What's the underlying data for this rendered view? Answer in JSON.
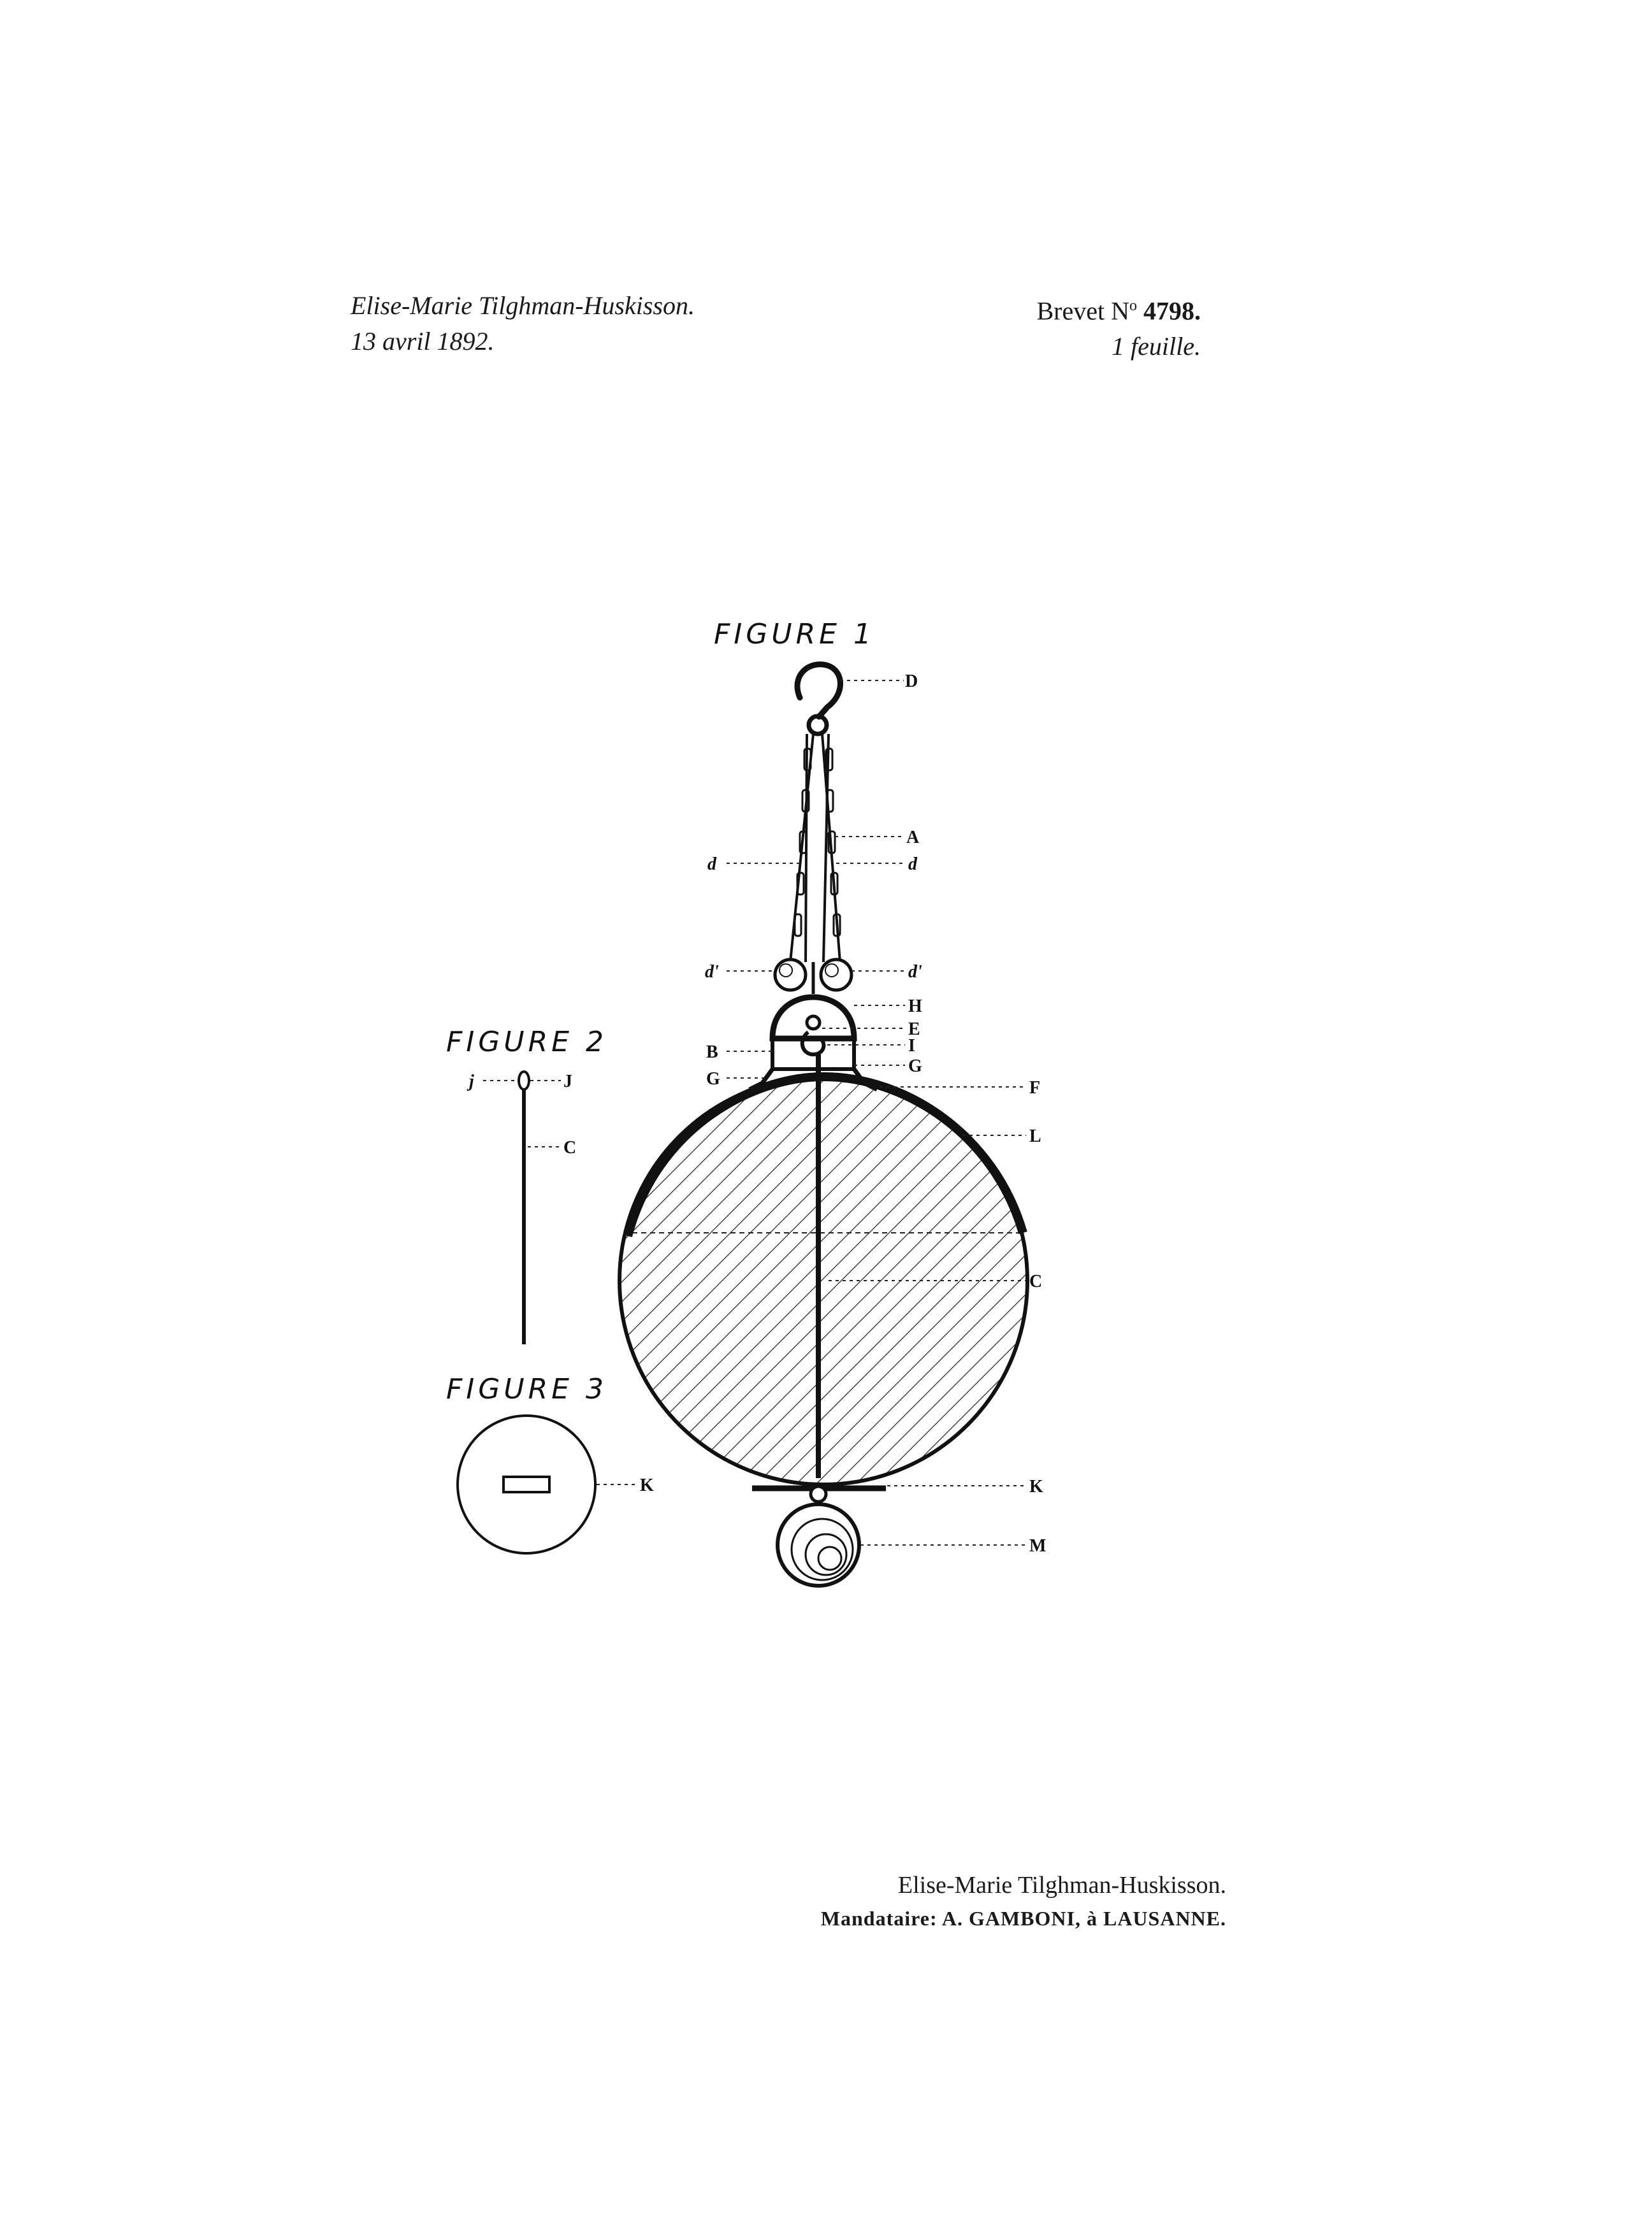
{
  "header": {
    "applicant": "Elise-Marie Tilghman-Huskisson.",
    "date": "13 avril 1892.",
    "brevet_prefix": "Brevet N",
    "brevet_superscript": "o",
    "brevet_number": "4798.",
    "sheets": "1 feuille."
  },
  "figures": {
    "figure1_title": "FIGURE 1",
    "figure2_title": "FIGURE 2",
    "figure3_title": "FIGURE 3"
  },
  "labels": {
    "D": "D",
    "A": "A",
    "d_left": "d",
    "d_right": "d",
    "d1_left": "d'",
    "d1_right": "d'",
    "H": "H",
    "E": "E",
    "B": "B",
    "I": "I",
    "G_left": "G",
    "G_right": "G",
    "F": "F",
    "L": "L",
    "C": "C",
    "K": "K",
    "M": "M",
    "fig2_j": "j",
    "fig2_J": "J",
    "fig2_C": "C",
    "fig3_K": "K"
  },
  "footer": {
    "name": "Elise-Marie Tilghman-Huskisson.",
    "agent": "Mandataire: A. GAMBONI, à LAUSANNE."
  }
}
